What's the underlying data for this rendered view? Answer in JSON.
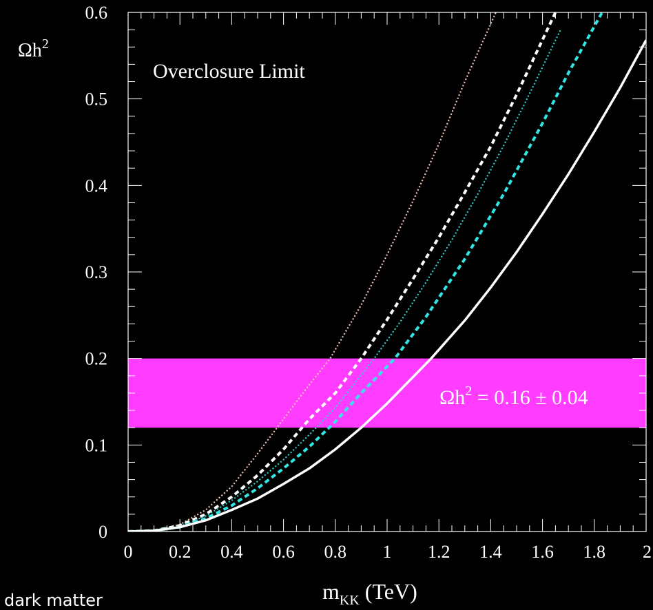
{
  "chart_data": {
    "type": "line",
    "title": "",
    "xlabel": {
      "main": "m",
      "sub": "KK",
      "rest": " (TeV)"
    },
    "ylabel": {
      "main": "Ωh",
      "sup": "2"
    },
    "xlim": [
      0,
      2
    ],
    "ylim": [
      0,
      0.6
    ],
    "xticks": [
      0,
      0.2,
      0.4,
      0.6,
      0.8,
      1,
      1.2,
      1.4,
      1.6,
      1.8,
      2
    ],
    "xtick_labels": [
      "0",
      "0.2",
      "0.4",
      "0.6",
      "0.8",
      "1",
      "1.2",
      "1.4",
      "1.6",
      "1.8",
      "2"
    ],
    "yticks": [
      0,
      0.1,
      0.2,
      0.3,
      0.4,
      0.5,
      0.6
    ],
    "ytick_labels": [
      "0",
      "0.1",
      "0.2",
      "0.3",
      "0.4",
      "0.5",
      "0.6"
    ],
    "annotations": {
      "overclosure": "Overclosure Limit",
      "band_label": {
        "main": "Ωh",
        "sup": "2",
        "rest": " = 0.16 ± 0.04"
      }
    },
    "band": {
      "y_low": 0.12,
      "y_high": 0.2,
      "color": "#ff3cff"
    },
    "series": [
      {
        "style": "dotted-thin",
        "color": "#f2c7b8",
        "x": [
          0,
          0.1,
          0.2,
          0.3,
          0.4,
          0.5,
          0.6,
          0.7,
          0.78,
          0.9,
          1.0,
          1.1,
          1.2,
          1.3,
          1.42
        ],
        "y": [
          0,
          0.001,
          0.008,
          0.025,
          0.052,
          0.09,
          0.13,
          0.17,
          0.2,
          0.262,
          0.32,
          0.382,
          0.448,
          0.52,
          0.6
        ]
      },
      {
        "style": "dashed-thick",
        "color": "#ffffff",
        "x": [
          0,
          0.1,
          0.2,
          0.3,
          0.4,
          0.5,
          0.6,
          0.7,
          0.8,
          0.9,
          1.0,
          1.1,
          1.2,
          1.3,
          1.4,
          1.5,
          1.65
        ],
        "y": [
          0,
          0.001,
          0.007,
          0.02,
          0.04,
          0.065,
          0.095,
          0.13,
          0.16,
          0.2,
          0.245,
          0.292,
          0.34,
          0.392,
          0.445,
          0.505,
          0.6
        ]
      },
      {
        "style": "dotted-thin",
        "color": "#33d1cc",
        "x": [
          0,
          0.1,
          0.2,
          0.3,
          0.4,
          0.5,
          0.6,
          0.7,
          0.8,
          0.95,
          1.05,
          1.15,
          1.25,
          1.35,
          1.45,
          1.55,
          1.67
        ],
        "y": [
          0,
          0.001,
          0.006,
          0.018,
          0.036,
          0.058,
          0.083,
          0.112,
          0.143,
          0.2,
          0.242,
          0.288,
          0.337,
          0.39,
          0.446,
          0.506,
          0.58
        ]
      },
      {
        "style": "dashed-thick",
        "color": "#33e6e6",
        "x": [
          0,
          0.1,
          0.2,
          0.3,
          0.4,
          0.5,
          0.6,
          0.7,
          0.8,
          0.9,
          1.03,
          1.15,
          1.3,
          1.45,
          1.6,
          1.7,
          1.83
        ],
        "y": [
          0,
          0.001,
          0.005,
          0.015,
          0.03,
          0.05,
          0.073,
          0.098,
          0.127,
          0.16,
          0.2,
          0.248,
          0.315,
          0.39,
          0.472,
          0.53,
          0.6
        ]
      },
      {
        "style": "solid-thick",
        "color": "#ffffff",
        "x": [
          0,
          0.1,
          0.2,
          0.3,
          0.4,
          0.5,
          0.6,
          0.7,
          0.8,
          0.9,
          1.0,
          1.17,
          1.3,
          1.4,
          1.5,
          1.6,
          1.7,
          1.8,
          1.9,
          2.0
        ],
        "y": [
          0,
          0.001,
          0.005,
          0.013,
          0.025,
          0.038,
          0.055,
          0.073,
          0.095,
          0.12,
          0.148,
          0.2,
          0.244,
          0.282,
          0.323,
          0.367,
          0.413,
          0.462,
          0.513,
          0.568
        ]
      }
    ]
  },
  "caption": "dark matter"
}
